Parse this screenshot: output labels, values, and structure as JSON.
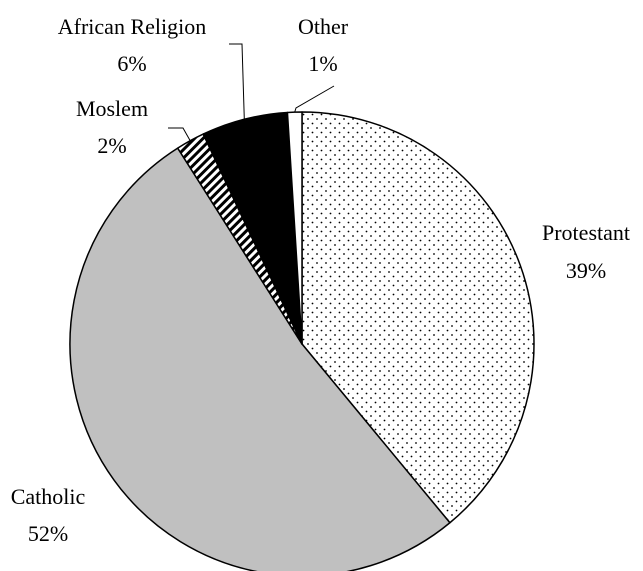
{
  "chart_data": {
    "type": "pie",
    "start_angle_deg": -90,
    "direction": "clockwise",
    "slices": [
      {
        "label": "Protestant",
        "value": 39,
        "value_label": "39%",
        "fill": "dots",
        "color": "#ffffff"
      },
      {
        "label": "Catholic",
        "value": 52,
        "value_label": "52%",
        "fill": "solid",
        "color": "#c0c0c0"
      },
      {
        "label": "Moslem",
        "value": 2,
        "value_label": "2%",
        "fill": "diagonal-stripes",
        "color": "#000000"
      },
      {
        "label": "African Religion",
        "value": 6,
        "value_label": "6%",
        "fill": "solid",
        "color": "#000000"
      },
      {
        "label": "Other",
        "value": 1,
        "value_label": "1%",
        "fill": "solid",
        "color": "#ffffff"
      }
    ]
  }
}
